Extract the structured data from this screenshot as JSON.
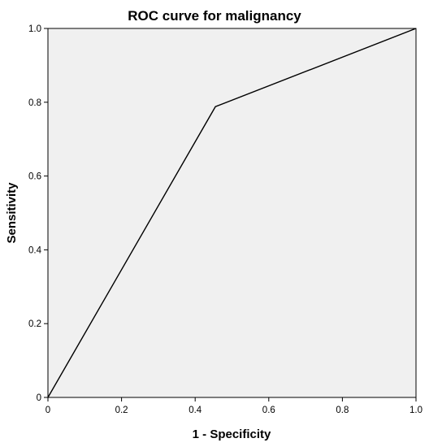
{
  "chart_data": {
    "type": "line",
    "title": "ROC curve for malignancy",
    "xlabel": "1 - Specificity",
    "ylabel": "Sensitivity",
    "xlim": [
      0,
      1
    ],
    "ylim": [
      0,
      1
    ],
    "x_ticks": [
      "0",
      "0.2",
      "0.4",
      "0.6",
      "0.8",
      "1.0"
    ],
    "y_ticks": [
      "0",
      "0.2",
      "0.4",
      "0.6",
      "0.8",
      "1.0"
    ],
    "grid": false,
    "series": [
      {
        "points": [
          {
            "x": 0.0,
            "y": 0.0
          },
          {
            "x": 0.455,
            "y": 0.788
          },
          {
            "x": 1.0,
            "y": 1.0
          }
        ]
      }
    ],
    "colors": {
      "plot_background": "#f0f0f0",
      "line": "#000000",
      "frame": "#000000"
    }
  }
}
